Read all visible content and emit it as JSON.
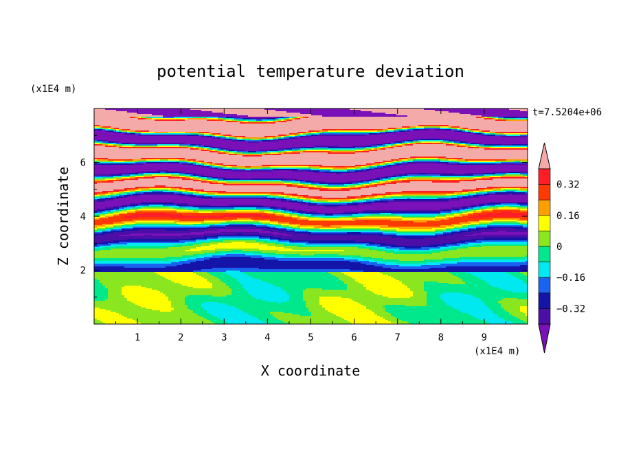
{
  "chart_data": {
    "type": "heatmap",
    "title": "potential temperature deviation",
    "xlabel": "X coordinate",
    "ylabel": "Z coordinate",
    "x_unit": "(x1E4 m)",
    "y_unit": "(x1E4 m)",
    "time_label": "t=7.5204e+06",
    "xlim": [
      0,
      10
    ],
    "ylim": [
      0,
      8
    ],
    "x_ticks": [
      "1",
      "2",
      "3",
      "4",
      "5",
      "6",
      "7",
      "8",
      "9"
    ],
    "y_ticks": [
      "2",
      "4",
      "6"
    ],
    "colorbar": {
      "levels": [
        -0.4,
        -0.32,
        -0.24,
        -0.16,
        -0.08,
        0,
        0.08,
        0.16,
        0.24,
        0.32,
        0.4
      ],
      "labels": [
        "0.32",
        "0.16",
        "0",
        "−0.16",
        "−0.32"
      ],
      "colors": [
        "#7a10b8",
        "#4b0fa8",
        "#1414a8",
        "#1a62f0",
        "#00e8f0",
        "#00e88c",
        "#8ae61e",
        "#ffff00",
        "#ffa000",
        "#ff3a00",
        "#ff1e28",
        "#f5aaaa"
      ]
    }
  }
}
